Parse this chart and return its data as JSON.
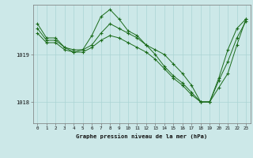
{
  "title": "Graphe pression niveau de la mer (hPa)",
  "bg_color": "#cce8e8",
  "line_color": "#1a6b1a",
  "grid_color": "#aad4d4",
  "ylabel_ticks": [
    1018,
    1019
  ],
  "xlim": [
    -0.5,
    23.5
  ],
  "ylim": [
    1017.55,
    1020.05
  ],
  "series": [
    [
      1019.65,
      1019.35,
      1019.35,
      1019.15,
      1019.05,
      1019.1,
      1019.2,
      1019.45,
      1019.65,
      1019.55,
      1019.45,
      1019.35,
      1019.2,
      1019.0,
      1018.75,
      1018.55,
      1018.4,
      1018.2,
      1018.0,
      1018.0,
      1018.5,
      1019.1,
      1019.55,
      1019.75
    ],
    [
      1019.55,
      1019.3,
      1019.3,
      1019.15,
      1019.1,
      1019.1,
      1019.4,
      1019.8,
      1019.95,
      1019.75,
      1019.5,
      1019.4,
      1019.2,
      1019.1,
      1019.0,
      1018.8,
      1018.6,
      1018.35,
      1018.0,
      1018.0,
      1018.3,
      1018.6,
      1019.2,
      1019.75
    ],
    [
      1019.45,
      1019.25,
      1019.25,
      1019.1,
      1019.05,
      1019.05,
      1019.15,
      1019.3,
      1019.4,
      1019.35,
      1019.25,
      1019.15,
      1019.05,
      1018.9,
      1018.7,
      1018.5,
      1018.35,
      1018.15,
      1018.0,
      1018.0,
      1018.45,
      1018.85,
      1019.35,
      1019.7
    ]
  ]
}
